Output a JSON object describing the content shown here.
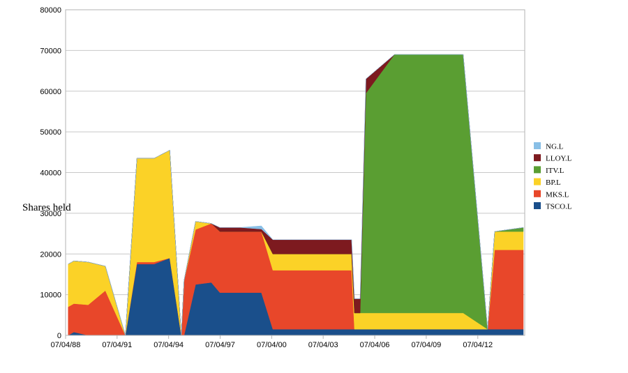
{
  "chart_data": {
    "type": "area",
    "stacked": true,
    "ylabel": "Shares held",
    "xlabel": "",
    "ylim": [
      0,
      80000
    ],
    "yticks": [
      0,
      10000,
      20000,
      30000,
      40000,
      50000,
      60000,
      70000,
      80000
    ],
    "xlim": [
      "1988-04-07",
      "2014-12-31"
    ],
    "xticks": [
      "07/04/88",
      "07/04/91",
      "07/04/94",
      "07/04/97",
      "07/04/00",
      "07/04/03",
      "07/04/06",
      "07/04/09",
      "07/04/12"
    ],
    "grid": true,
    "legend_position": "right",
    "legend_order": [
      "NG.L",
      "LLOY.L",
      "ITV.L",
      "BP.L",
      "MKS.L",
      "TSCO.L"
    ],
    "colors": {
      "TSCO.L": "#1a4f8b",
      "MKS.L": "#e8472a",
      "BP.L": "#fbd227",
      "ITV.L": "#5a9e32",
      "LLOY.L": "#7d1a1f",
      "NG.L": "#89bfe6"
    },
    "dates": [
      "1988-06-01",
      "1988-10-01",
      "1989-08-01",
      "1990-08-01",
      "1991-10-01",
      "1992-06-01",
      "1993-06-01",
      "1994-05-01",
      "1995-01-01",
      "1995-03-01",
      "1995-11-01",
      "1996-10-01",
      "1997-04-01",
      "1998-06-01",
      "1999-09-01",
      "2000-05-01",
      "2001-06-01",
      "2003-03-01",
      "2004-12-01",
      "2005-02-01",
      "2005-06-01",
      "2005-10-01",
      "2007-06-01",
      "2009-06-01",
      "2011-06-01",
      "2012-11-01",
      "2013-04-01",
      "2014-12-01"
    ],
    "series": [
      {
        "name": "TSCO.L",
        "values": [
          0,
          800,
          0,
          0,
          0,
          17500,
          17500,
          19000,
          0,
          0,
          12500,
          13000,
          10500,
          10500,
          10500,
          1500,
          1500,
          1500,
          1500,
          1500,
          1500,
          1500,
          1500,
          1500,
          1500,
          1500,
          1500,
          1500
        ]
      },
      {
        "name": "MKS.L",
        "values": [
          7000,
          7000,
          7500,
          11000,
          0,
          500,
          500,
          0,
          0,
          13500,
          13500,
          14500,
          15000,
          15000,
          15000,
          14500,
          14500,
          14500,
          14500,
          0,
          0,
          0,
          0,
          0,
          0,
          0,
          19500,
          19500
        ]
      },
      {
        "name": "BP.L",
        "values": [
          10500,
          10500,
          10500,
          6000,
          0,
          25500,
          25500,
          26500,
          0,
          0,
          2000,
          0,
          0,
          0,
          0,
          4000,
          4000,
          4000,
          4000,
          4000,
          4000,
          4000,
          4000,
          4000,
          4000,
          0,
          4500,
          4500
        ]
      },
      {
        "name": "ITV.L",
        "values": [
          0,
          0,
          0,
          0,
          0,
          0,
          0,
          0,
          0,
          0,
          0,
          0,
          0,
          0,
          0,
          0,
          0,
          0,
          0,
          0,
          0,
          54000,
          63500,
          63500,
          63500,
          0,
          0,
          1000
        ]
      },
      {
        "name": "LLOY.L",
        "values": [
          0,
          0,
          0,
          0,
          0,
          0,
          0,
          0,
          0,
          0,
          0,
          0,
          1000,
          1000,
          600,
          3500,
          3500,
          3500,
          3500,
          3500,
          3500,
          3500,
          0,
          0,
          0,
          0,
          0,
          0
        ]
      },
      {
        "name": "NG.L",
        "values": [
          0,
          0,
          0,
          0,
          0,
          0,
          0,
          0,
          0,
          0,
          0,
          0,
          0,
          0,
          800,
          0,
          0,
          0,
          0,
          0,
          0,
          0,
          0,
          0,
          0,
          0,
          0,
          0
        ]
      }
    ]
  }
}
